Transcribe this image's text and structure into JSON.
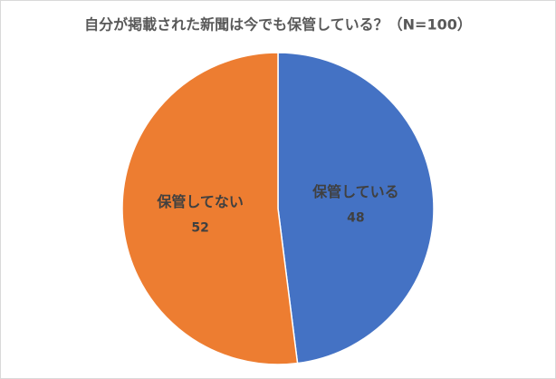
{
  "chart_data": {
    "type": "pie",
    "title": "自分が掲載された新聞は今でも保管している？（N=100）",
    "categories": [
      "保管している",
      "保管してない"
    ],
    "values": [
      48,
      52
    ],
    "colors": [
      "#4472c4",
      "#ed7d31"
    ]
  }
}
